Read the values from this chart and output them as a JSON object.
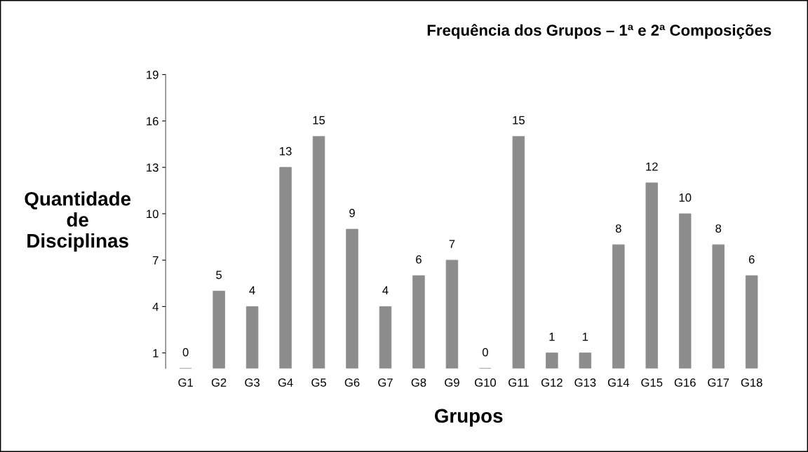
{
  "chart_data": {
    "type": "bar",
    "title": "Frequência dos Grupos – 1ª e 2ª Composições",
    "xlabel": "Grupos",
    "ylabel": "Quantidade\nde\nDisciplinas",
    "categories": [
      "G1",
      "G2",
      "G3",
      "G4",
      "G5",
      "G6",
      "G7",
      "G8",
      "G9",
      "G10",
      "G11",
      "G12",
      "G13",
      "G14",
      "G15",
      "G16",
      "G17",
      "G18"
    ],
    "values": [
      0,
      5,
      4,
      13,
      15,
      9,
      4,
      6,
      7,
      0,
      15,
      1,
      1,
      8,
      12,
      10,
      8,
      6
    ],
    "color": "#8c8c8c",
    "ylim": [
      0,
      19
    ],
    "yticks": [
      1,
      4,
      7,
      10,
      13,
      16,
      19
    ],
    "data_labels": true,
    "grid": false,
    "legend": false
  }
}
